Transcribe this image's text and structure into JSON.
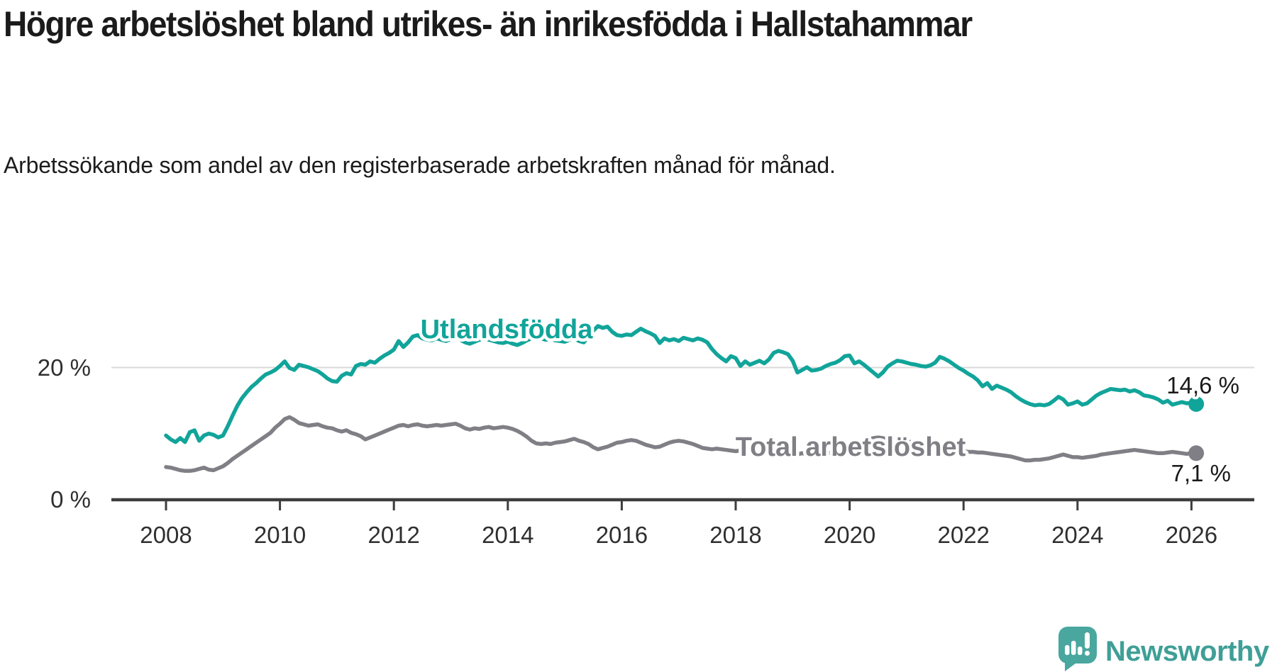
{
  "header": {
    "title": "Högre arbetslöshet bland utrikes- än inrikesfödda i Hallstahammar",
    "subtitle": "Arbetssökande som andel av den registerbaserade arbetskraften månad för månad."
  },
  "brand": {
    "name": "Newsworthy",
    "bubble_color": "#49a79f",
    "text_color": "#3f9f97"
  },
  "chart_data": {
    "type": "line",
    "title": "Högre arbetslöshet bland utrikes- än inrikesfödda i Hallstahammar",
    "subtitle": "Arbetssökande som andel av den registerbaserade arbetskraften månad för månad.",
    "x_unit": "monthly",
    "x_start": "2008-01",
    "x_end": "2026-02",
    "x_tick_years": [
      2008,
      2010,
      2012,
      2014,
      2016,
      2018,
      2020,
      2022,
      2024,
      2026
    ],
    "y_ticks": [
      {
        "value": 0,
        "label": "0 %"
      },
      {
        "value": 20,
        "label": "20 %"
      }
    ],
    "ylim": [
      0,
      30
    ],
    "grid": "horizontal line at 20 % only",
    "legend_position": "inline labels on lines, value labels at line ends",
    "axis_color": "#3d3d3d",
    "grid_color": "#dadada",
    "series": [
      {
        "name": "Utlandsfödda",
        "color": "#11a49a",
        "end_label": "14,6 %",
        "end_value": 14.6,
        "values": [
          9.8,
          9.2,
          8.8,
          9.4,
          8.8,
          10.3,
          10.6,
          9.0,
          9.8,
          10.1,
          9.9,
          9.5,
          9.8,
          11.2,
          12.8,
          14.3,
          15.5,
          16.4,
          17.2,
          17.8,
          18.5,
          19.1,
          19.4,
          19.8,
          20.4,
          21.1,
          20.1,
          19.8,
          20.6,
          20.4,
          20.2,
          19.9,
          19.6,
          19.1,
          18.5,
          18.1,
          18.0,
          18.9,
          19.3,
          19.1,
          20.4,
          20.7,
          20.6,
          21.1,
          20.9,
          21.5,
          22.0,
          22.4,
          22.9,
          24.2,
          23.3,
          24.0,
          24.9,
          25.1,
          24.6,
          24.4,
          24.3,
          24.6,
          24.4,
          24.2,
          24.5,
          24.8,
          24.4,
          24.0,
          23.8,
          24.1,
          24.4,
          24.6,
          24.4,
          24.2,
          24.0,
          23.9,
          24.1,
          23.8,
          23.6,
          23.9,
          24.3,
          24.6,
          24.8,
          24.6,
          24.4,
          24.5,
          24.3,
          24.2,
          24.1,
          24.4,
          24.6,
          24.2,
          24.0,
          25.0,
          25.8,
          26.5,
          26.2,
          26.4,
          25.6,
          25.1,
          25.0,
          25.2,
          25.1,
          25.6,
          26.1,
          25.7,
          25.4,
          25.0,
          23.9,
          24.6,
          24.3,
          24.5,
          24.2,
          24.7,
          24.5,
          24.3,
          24.6,
          24.4,
          24.0,
          23.0,
          22.2,
          21.6,
          21.1,
          21.9,
          21.6,
          20.4,
          21.1,
          20.6,
          20.9,
          21.2,
          20.8,
          21.4,
          22.4,
          22.7,
          22.5,
          22.2,
          21.2,
          19.4,
          19.8,
          20.2,
          19.7,
          19.8,
          20.0,
          20.4,
          20.7,
          20.9,
          21.3,
          21.9,
          22.0,
          20.8,
          21.1,
          20.6,
          20.0,
          19.4,
          18.8,
          19.4,
          20.3,
          20.8,
          21.2,
          21.1,
          20.9,
          20.7,
          20.6,
          20.4,
          20.3,
          20.5,
          20.9,
          21.8,
          21.5,
          21.1,
          20.6,
          20.1,
          19.7,
          19.2,
          18.8,
          18.2,
          17.3,
          17.8,
          16.9,
          17.4,
          17.1,
          16.8,
          16.4,
          15.8,
          15.3,
          14.9,
          14.6,
          14.4,
          14.5,
          14.4,
          14.6,
          15.1,
          15.7,
          15.3,
          14.5,
          14.7,
          15.0,
          14.5,
          14.7,
          15.3,
          15.9,
          16.3,
          16.6,
          16.9,
          16.8,
          16.7,
          16.8,
          16.5,
          16.7,
          16.4,
          15.9,
          15.8,
          15.6,
          15.3,
          14.8,
          15.1,
          14.5,
          14.7,
          14.9,
          14.7,
          14.8,
          14.6
        ]
      },
      {
        "name": "Total arbetslöshet",
        "color": "#7f7f85",
        "end_label": "7,1 %",
        "end_value": 7.1,
        "values": [
          5.0,
          4.9,
          4.7,
          4.5,
          4.4,
          4.4,
          4.5,
          4.7,
          4.9,
          4.6,
          4.5,
          4.8,
          5.1,
          5.6,
          6.2,
          6.7,
          7.2,
          7.7,
          8.2,
          8.7,
          9.2,
          9.7,
          10.2,
          11.0,
          11.6,
          12.3,
          12.6,
          12.2,
          11.7,
          11.5,
          11.3,
          11.4,
          11.5,
          11.2,
          11.0,
          10.9,
          10.6,
          10.4,
          10.6,
          10.2,
          10.0,
          9.7,
          9.2,
          9.5,
          9.8,
          10.1,
          10.4,
          10.7,
          11.0,
          11.3,
          11.4,
          11.2,
          11.4,
          11.5,
          11.3,
          11.2,
          11.3,
          11.4,
          11.3,
          11.4,
          11.5,
          11.6,
          11.3,
          10.9,
          10.7,
          10.9,
          10.8,
          11.0,
          11.1,
          10.9,
          11.0,
          11.1,
          11.0,
          10.8,
          10.5,
          10.1,
          9.6,
          9.0,
          8.6,
          8.5,
          8.6,
          8.5,
          8.7,
          8.8,
          8.9,
          9.1,
          9.3,
          9.0,
          8.8,
          8.5,
          8.0,
          7.7,
          7.9,
          8.1,
          8.4,
          8.7,
          8.8,
          9.0,
          9.1,
          9.0,
          8.7,
          8.4,
          8.2,
          8.0,
          8.1,
          8.4,
          8.7,
          8.9,
          9.0,
          8.9,
          8.7,
          8.5,
          8.2,
          7.9,
          7.8,
          7.7,
          7.8,
          7.7,
          7.6,
          7.5,
          7.4,
          7.5,
          7.6,
          7.4,
          7.3,
          7.4,
          7.3,
          7.2,
          7.3,
          7.2,
          7.1,
          7.3,
          7.0,
          6.9,
          7.1,
          6.9,
          6.8,
          6.7,
          6.8,
          7.0,
          7.2,
          7.3,
          7.5,
          7.7,
          7.9,
          8.0,
          8.3,
          8.8,
          9.2,
          9.4,
          9.5,
          9.4,
          9.2,
          9.0,
          8.9,
          8.8,
          8.9,
          8.8,
          8.7,
          8.5,
          8.3,
          8.1,
          7.9,
          7.8,
          7.7,
          7.6,
          7.5,
          7.4,
          7.4,
          7.3,
          7.3,
          7.2,
          7.2,
          7.1,
          7.0,
          6.9,
          6.8,
          6.7,
          6.6,
          6.4,
          6.2,
          6.0,
          6.0,
          6.1,
          6.1,
          6.2,
          6.3,
          6.5,
          6.7,
          6.9,
          6.7,
          6.5,
          6.5,
          6.4,
          6.5,
          6.6,
          6.7,
          6.9,
          7.0,
          7.1,
          7.2,
          7.3,
          7.4,
          7.5,
          7.6,
          7.5,
          7.4,
          7.3,
          7.2,
          7.1,
          7.1,
          7.2,
          7.3,
          7.2,
          7.1,
          7.0,
          7.1,
          7.1
        ]
      }
    ]
  }
}
